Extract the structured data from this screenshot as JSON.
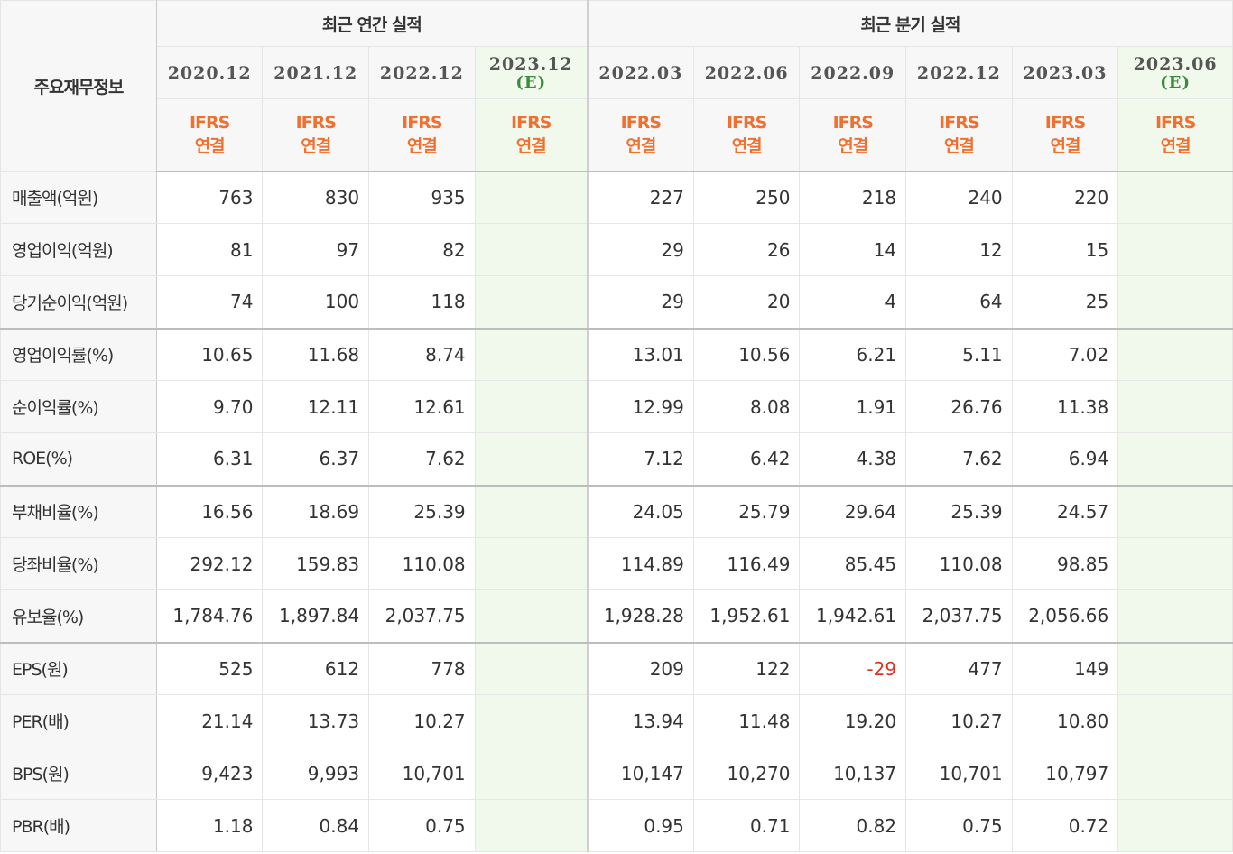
{
  "table": {
    "row_header": "주요재무정보",
    "groups": {
      "annual": "최근 연간 실적",
      "quarterly": "최근 분기 실적"
    },
    "annual_periods": [
      "2020.12",
      "2021.12",
      "2022.12",
      "2023.12"
    ],
    "annual_est_marker": "(E)",
    "quarter_periods": [
      "2022.03",
      "2022.06",
      "2022.09",
      "2022.12",
      "2023.03",
      "2023.06"
    ],
    "quarter_est_marker": "(E)",
    "ifrs_line1": "IFRS",
    "ifrs_line2": "연결",
    "rows": [
      {
        "label": "매출액(억원)",
        "values": [
          "763",
          "830",
          "935",
          "",
          "227",
          "250",
          "218",
          "240",
          "220",
          ""
        ]
      },
      {
        "label": "영업이익(억원)",
        "values": [
          "81",
          "97",
          "82",
          "",
          "29",
          "26",
          "14",
          "12",
          "15",
          ""
        ]
      },
      {
        "label": "당기순이익(억원)",
        "values": [
          "74",
          "100",
          "118",
          "",
          "29",
          "20",
          "4",
          "64",
          "25",
          ""
        ]
      },
      {
        "label": "영업이익률(%)",
        "values": [
          "10.65",
          "11.68",
          "8.74",
          "",
          "13.01",
          "10.56",
          "6.21",
          "5.11",
          "7.02",
          ""
        ]
      },
      {
        "label": "순이익률(%)",
        "values": [
          "9.70",
          "12.11",
          "12.61",
          "",
          "12.99",
          "8.08",
          "1.91",
          "26.76",
          "11.38",
          ""
        ]
      },
      {
        "label": "ROE(%)",
        "values": [
          "6.31",
          "6.37",
          "7.62",
          "",
          "7.12",
          "6.42",
          "4.38",
          "7.62",
          "6.94",
          ""
        ]
      },
      {
        "label": "부채비율(%)",
        "values": [
          "16.56",
          "18.69",
          "25.39",
          "",
          "24.05",
          "25.79",
          "29.64",
          "25.39",
          "24.57",
          ""
        ]
      },
      {
        "label": "당좌비율(%)",
        "values": [
          "292.12",
          "159.83",
          "110.08",
          "",
          "114.89",
          "116.49",
          "85.45",
          "110.08",
          "98.85",
          ""
        ]
      },
      {
        "label": "유보율(%)",
        "values": [
          "1,784.76",
          "1,897.84",
          "2,037.75",
          "",
          "1,928.28",
          "1,952.61",
          "1,942.61",
          "2,037.75",
          "2,056.66",
          ""
        ]
      },
      {
        "label": "EPS(원)",
        "values": [
          "525",
          "612",
          "778",
          "",
          "209",
          "122",
          "-29",
          "477",
          "149",
          ""
        ]
      },
      {
        "label": "PER(배)",
        "values": [
          "21.14",
          "13.73",
          "10.27",
          "",
          "13.94",
          "11.48",
          "19.20",
          "10.27",
          "10.80",
          ""
        ]
      },
      {
        "label": "BPS(원)",
        "values": [
          "9,423",
          "9,993",
          "10,701",
          "",
          "10,147",
          "10,270",
          "10,137",
          "10,701",
          "10,797",
          ""
        ]
      },
      {
        "label": "PBR(배)",
        "values": [
          "1.18",
          "0.84",
          "0.75",
          "",
          "0.95",
          "0.71",
          "0.82",
          "0.75",
          "0.72",
          ""
        ]
      }
    ],
    "colors": {
      "ifrs": "#f0702f",
      "estimate_marker": "#3c8a3c",
      "estimate_bg": "#f1f8ec",
      "negative": "#e0301e"
    }
  }
}
